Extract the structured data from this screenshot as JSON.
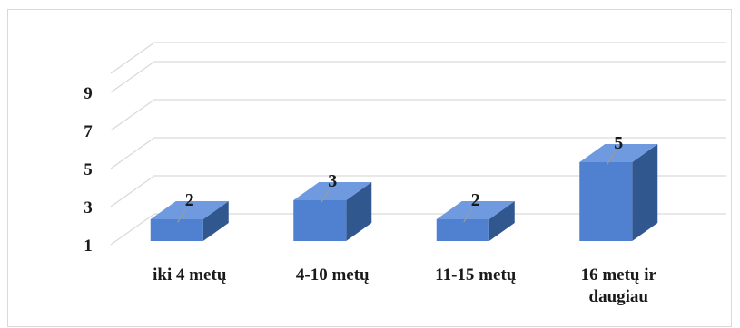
{
  "chart_data": {
    "type": "bar",
    "style": "3d-column",
    "categories": [
      "iki 4 metų",
      "4-10 metų",
      "11-15 metų",
      "16 metų ir daugiau"
    ],
    "category_lines": [
      [
        "iki 4 metų"
      ],
      [
        "4-10 metų"
      ],
      [
        "11-15 metų"
      ],
      [
        "16 metų ir",
        "daugiau"
      ]
    ],
    "values": [
      2,
      3,
      2,
      5
    ],
    "data_labels": [
      "2",
      "3",
      "2",
      "5"
    ],
    "y_ticks": [
      "1",
      "3",
      "5",
      "7",
      "9"
    ],
    "ylim": [
      1,
      10
    ],
    "grid": true,
    "legend": "none",
    "colors": {
      "bar_front": "#4f81d0",
      "bar_top": "#6f9ae0",
      "bar_side": "#31578f",
      "grid": "#d9d9d9",
      "frame": "#d9d9d9",
      "text": "#1a1a1a"
    }
  }
}
